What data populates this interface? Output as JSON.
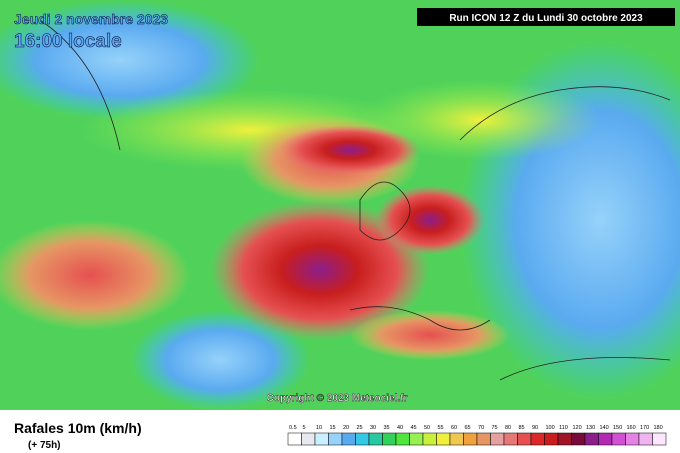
{
  "header": {
    "date": "Jeudi 2 novembre 2023",
    "time": "16:00 locale",
    "run": "Run ICON 12 Z du Lundi 30 octobre 2023"
  },
  "copyright": "Copyright © 2023 Meteociel.fr",
  "footer": {
    "title": "Rafales 10m (km/h)",
    "lead": "(+ 75h)"
  },
  "legend": {
    "labels": [
      "0.5",
      "5",
      "10",
      "15",
      "20",
      "25",
      "30",
      "35",
      "40",
      "45",
      "50",
      "55",
      "60",
      "65",
      "70",
      "75",
      "80",
      "85",
      "90",
      "100",
      "110",
      "120",
      "130",
      "140",
      "150",
      "160",
      "170",
      "180"
    ],
    "colors": [
      "#ffffff",
      "#e8e8f0",
      "#c8f0ff",
      "#96d2fa",
      "#5aaaf0",
      "#32c8e6",
      "#28c8a0",
      "#32d25a",
      "#50e63c",
      "#96f050",
      "#c8f03c",
      "#f0f03c",
      "#f0c850",
      "#f0a03c",
      "#e69664",
      "#e6a0a0",
      "#e67878",
      "#e65050",
      "#dc2828",
      "#c81e1e",
      "#a01428",
      "#780a3c",
      "#8c1e8c",
      "#b428b4",
      "#d250d2",
      "#e682e6",
      "#f0b4f0",
      "#ffe6ff"
    ]
  }
}
